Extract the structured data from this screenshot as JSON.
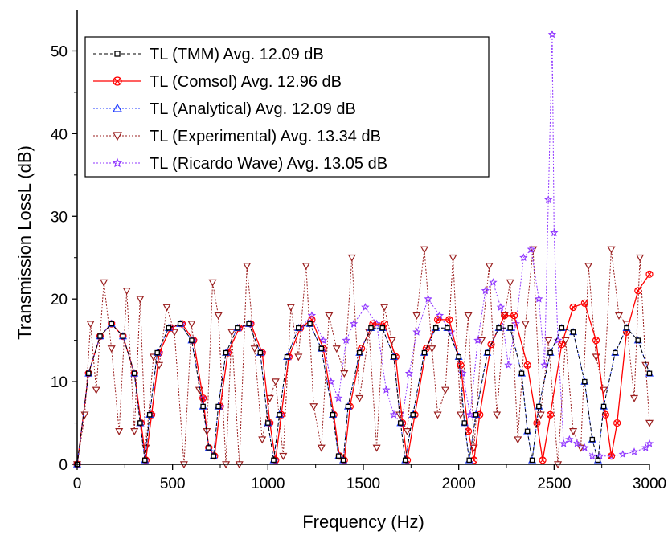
{
  "chart_data": {
    "type": "line",
    "title": "",
    "xlabel": "Frequency (Hz)",
    "ylabel": "Transmission LossL (dB)",
    "xlim": [
      0,
      3000
    ],
    "ylim": [
      0,
      55
    ],
    "xticks": [
      0,
      500,
      1000,
      1500,
      2000,
      2500,
      3000
    ],
    "yticks": [
      0,
      10,
      20,
      30,
      40,
      50
    ],
    "grid": false,
    "legend_position": "top-left",
    "series": [
      {
        "name": "TL (TMM) Avg. 12.09 dB",
        "color": "#000000",
        "marker": "square",
        "linestyle": "dash",
        "x": [
          0,
          60,
          120,
          180,
          240,
          300,
          330,
          355,
          380,
          420,
          480,
          540,
          600,
          660,
          690,
          715,
          740,
          780,
          840,
          900,
          960,
          1000,
          1030,
          1060,
          1100,
          1160,
          1220,
          1280,
          1340,
          1370,
          1395,
          1420,
          1480,
          1540,
          1600,
          1660,
          1695,
          1720,
          1760,
          1820,
          1880,
          1940,
          2000,
          2030,
          2055,
          2090,
          2150,
          2210,
          2270,
          2330,
          2360,
          2385,
          2420,
          2480,
          2540,
          2600,
          2660,
          2700,
          2730,
          2760,
          2820,
          2880,
          2940,
          3000
        ],
        "y": [
          0,
          11,
          15.5,
          17,
          15.5,
          11,
          5,
          0.5,
          6,
          13.5,
          16.5,
          17,
          15,
          7,
          2,
          1,
          7,
          13.5,
          16.5,
          17,
          13.5,
          5,
          0.5,
          6,
          13,
          16.5,
          17,
          14,
          6,
          1,
          0.5,
          7,
          13.5,
          16.5,
          16.5,
          13,
          5,
          0.5,
          6,
          13.5,
          16.5,
          16.5,
          13,
          5,
          0.5,
          6,
          13.5,
          16.5,
          16.5,
          11,
          4,
          0.5,
          7,
          13.5,
          16.5,
          16,
          10,
          3,
          0.5,
          7,
          13.5,
          16.5,
          15,
          11
        ]
      },
      {
        "name": "TL (Comsol) Avg. 12.96 dB",
        "color": "#ff0000",
        "marker": "circle-x",
        "linestyle": "solid",
        "x": [
          0,
          60,
          120,
          180,
          240,
          300,
          335,
          360,
          390,
          430,
          490,
          550,
          610,
          660,
          690,
          720,
          750,
          790,
          850,
          910,
          970,
          1010,
          1040,
          1070,
          1110,
          1170,
          1230,
          1290,
          1345,
          1375,
          1400,
          1430,
          1490,
          1550,
          1610,
          1670,
          1705,
          1730,
          1770,
          1830,
          1890,
          1950,
          2010,
          2050,
          2080,
          2110,
          2170,
          2240,
          2290,
          2360,
          2410,
          2440,
          2480,
          2540,
          2600,
          2660,
          2720,
          2770,
          2800,
          2830,
          2880,
          2940,
          3000
        ],
        "y": [
          0,
          11,
          15.5,
          17,
          15.5,
          11,
          5,
          0.5,
          6,
          13.5,
          16.5,
          17,
          15,
          8,
          2,
          1,
          7,
          13.5,
          16.5,
          17,
          13.5,
          5,
          0.5,
          6,
          13,
          16.5,
          17.5,
          14,
          6,
          1,
          0.5,
          7,
          14,
          17,
          17,
          13,
          5,
          0.5,
          6,
          14,
          17.5,
          17.5,
          12,
          4,
          0.5,
          6,
          14.5,
          18,
          18,
          12,
          5,
          0.5,
          6,
          14.5,
          19,
          19.5,
          15,
          6,
          1,
          5,
          16,
          21,
          23
        ]
      },
      {
        "name": "TL (Analytical) Avg. 12.09 dB",
        "color": "#1f3bff",
        "marker": "triangle-up",
        "linestyle": "dot",
        "x": [
          0,
          60,
          120,
          180,
          240,
          300,
          330,
          355,
          380,
          420,
          480,
          540,
          600,
          660,
          690,
          715,
          740,
          780,
          840,
          900,
          960,
          1000,
          1030,
          1060,
          1100,
          1160,
          1220,
          1280,
          1340,
          1370,
          1395,
          1420,
          1480,
          1540,
          1600,
          1660,
          1695,
          1720,
          1760,
          1820,
          1880,
          1940,
          2000,
          2030,
          2055,
          2090,
          2150,
          2210,
          2270,
          2330,
          2360,
          2385,
          2420,
          2480,
          2540,
          2600,
          2660,
          2700,
          2730,
          2760,
          2820,
          2880,
          2940,
          3000
        ],
        "y": [
          0,
          11,
          15.5,
          17,
          15.5,
          11,
          5,
          0.5,
          6,
          13.5,
          16.5,
          17,
          15,
          7,
          2,
          1,
          7,
          13.5,
          16.5,
          17,
          13.5,
          5,
          0.5,
          6,
          13,
          16.5,
          17,
          14,
          6,
          1,
          0.5,
          7,
          13.5,
          16.5,
          16.5,
          13,
          5,
          0.5,
          6,
          13.5,
          16.5,
          16.5,
          13,
          5,
          0.5,
          6,
          13.5,
          16.5,
          16.5,
          11,
          4,
          0.5,
          7,
          13.5,
          16.5,
          16,
          10,
          3,
          0.5,
          7,
          13.5,
          16.5,
          15,
          11
        ]
      },
      {
        "name": "TL (Experimental) Avg. 13.34 dB",
        "color": "#9a1f1f",
        "marker": "triangle-down",
        "linestyle": "dot",
        "x": [
          0,
          40,
          70,
          100,
          140,
          180,
          220,
          260,
          300,
          330,
          360,
          400,
          430,
          470,
          510,
          560,
          600,
          640,
          680,
          710,
          740,
          780,
          810,
          850,
          890,
          930,
          970,
          1010,
          1040,
          1080,
          1120,
          1160,
          1200,
          1240,
          1280,
          1320,
          1360,
          1400,
          1440,
          1480,
          1530,
          1570,
          1610,
          1650,
          1690,
          1730,
          1780,
          1820,
          1860,
          1890,
          1930,
          1970,
          2010,
          2050,
          2080,
          2120,
          2160,
          2200,
          2240,
          2270,
          2310,
          2350,
          2390,
          2430,
          2470,
          2520,
          2560,
          2600,
          2640,
          2680,
          2720,
          2760,
          2800,
          2840,
          2880,
          2920,
          2950,
          2980,
          3000
        ],
        "y": [
          0,
          6,
          17,
          9,
          22,
          14,
          4,
          21,
          4,
          20,
          2,
          13,
          12,
          19,
          16,
          0,
          17,
          9,
          4,
          22,
          18,
          0,
          16,
          0,
          24,
          14,
          3,
          8,
          10,
          1,
          19,
          13,
          24,
          7,
          2,
          18,
          14,
          11,
          25,
          8,
          16,
          2,
          19,
          15,
          6,
          4,
          18,
          26,
          14,
          6,
          9,
          25,
          6,
          18,
          2,
          15,
          24,
          6,
          18,
          22,
          3,
          17,
          26,
          6,
          15,
          0,
          15,
          4,
          2,
          24,
          13,
          9,
          26,
          18,
          17,
          8,
          25,
          12,
          5
        ]
      },
      {
        "name": "TL (Ricardo Wave) Avg. 13.05 dB",
        "color": "#8f35ff",
        "marker": "star",
        "linestyle": "dot",
        "x": [
          0,
          60,
          120,
          180,
          240,
          300,
          335,
          360,
          390,
          430,
          490,
          550,
          610,
          660,
          690,
          720,
          750,
          790,
          850,
          910,
          970,
          1010,
          1040,
          1070,
          1110,
          1170,
          1230,
          1290,
          1330,
          1370,
          1410,
          1450,
          1510,
          1570,
          1620,
          1660,
          1700,
          1740,
          1780,
          1840,
          1900,
          1960,
          2020,
          2060,
          2100,
          2140,
          2180,
          2220,
          2260,
          2300,
          2340,
          2380,
          2420,
          2450,
          2470,
          2490,
          2500,
          2520,
          2550,
          2580,
          2620,
          2660,
          2700,
          2740,
          2800,
          2860,
          2920,
          2980,
          3000
        ],
        "y": [
          0,
          11,
          15.5,
          17,
          15.5,
          11,
          5,
          0.5,
          6,
          13.5,
          16.5,
          17,
          15,
          8,
          2,
          1,
          7,
          13.5,
          16.5,
          17,
          13.5,
          5,
          0.5,
          6,
          13,
          16.5,
          18,
          15,
          10,
          8,
          15,
          17,
          19,
          17,
          9,
          6,
          5,
          11,
          16,
          20,
          18,
          16,
          11,
          6,
          15,
          21,
          22,
          19,
          12,
          17,
          25,
          26,
          20,
          12,
          32,
          52,
          28,
          15,
          2.5,
          3,
          2.5,
          2,
          1,
          1,
          1,
          1.2,
          1.5,
          2,
          2.5
        ]
      }
    ]
  }
}
